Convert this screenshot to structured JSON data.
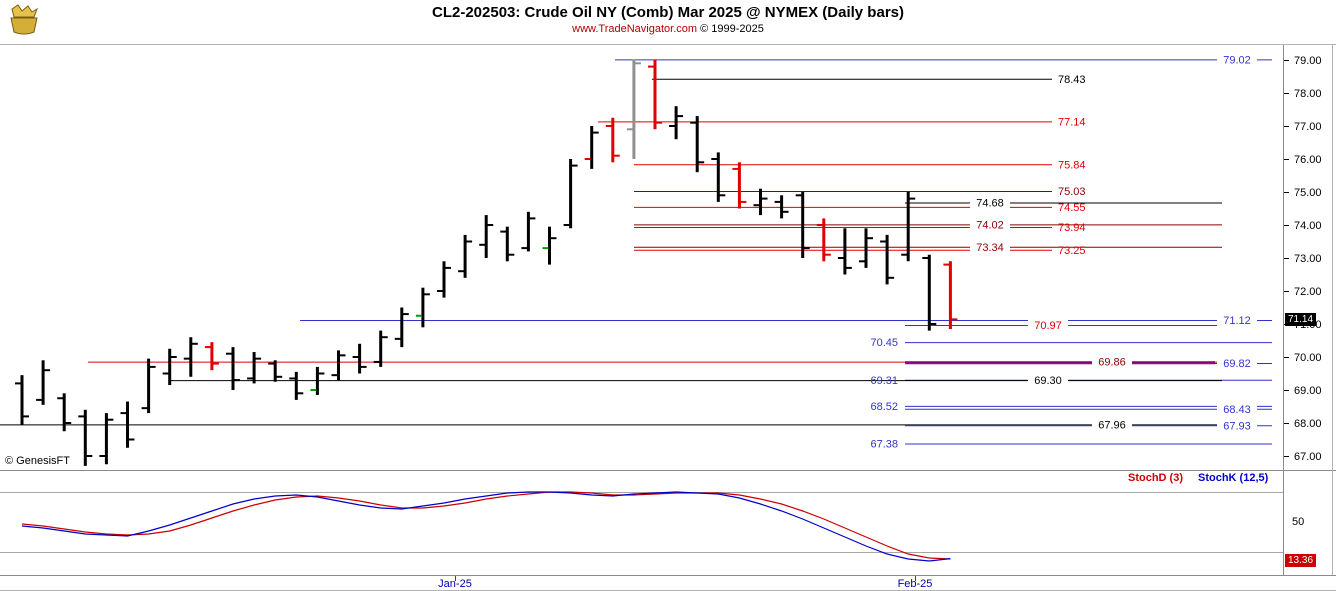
{
  "window": {
    "title_line": "CL2-202503:  Crude Oil NY (Comb) Mar 2025 @ NYMEX  (Daily bars)",
    "subtitle_url": "www.TradeNavigator.com",
    "subtitle_copyright": "© 1999-2025"
  },
  "watermark": "© GenesisFT",
  "colors": {
    "k": "#000000",
    "r": "#e00000",
    "gy": "#909090",
    "green": "#00a000"
  },
  "price_axis": {
    "current_badge": "71.14"
  },
  "stoch_panel": {
    "legend_d": "StochD (3)",
    "legend_k": "StochK (12,5)",
    "mid_label": "50",
    "current_badge": "13.36"
  },
  "chart_data": {
    "type": "ohlc-bar",
    "title": "CL2-202503: Crude Oil NY (Comb) Mar 2025 @ NYMEX (Daily bars)",
    "ylabel": "Price",
    "ylim": [
      67.0,
      79.0
    ],
    "grid": "off",
    "y_ticks": [
      "79.00",
      "78.00",
      "77.00",
      "76.00",
      "75.00",
      "74.00",
      "73.00",
      "72.00",
      "71.00",
      "70.00",
      "69.00",
      "68.00",
      "67.00"
    ],
    "x_ticks": [
      {
        "label": "Jan-25",
        "x": 455
      },
      {
        "label": "Feb-25",
        "x": 915
      }
    ],
    "bars": [
      {
        "h": 69.45,
        "l": 67.95,
        "o": 69.2,
        "c": 68.2,
        "col": "k"
      },
      {
        "h": 69.9,
        "l": 68.55,
        "o": 68.7,
        "c": 69.6,
        "col": "k"
      },
      {
        "h": 68.9,
        "l": 67.75,
        "o": 68.75,
        "c": 68.0,
        "col": "k"
      },
      {
        "h": 68.4,
        "l": 66.7,
        "o": 68.2,
        "c": 67.0,
        "col": "k"
      },
      {
        "h": 68.3,
        "l": 66.75,
        "o": 67.0,
        "c": 68.1,
        "col": "k"
      },
      {
        "h": 68.65,
        "l": 67.25,
        "o": 68.3,
        "c": 67.5,
        "col": "k"
      },
      {
        "h": 69.95,
        "l": 68.3,
        "o": 68.45,
        "c": 69.7,
        "col": "k"
      },
      {
        "h": 70.25,
        "l": 69.15,
        "o": 69.5,
        "c": 70.0,
        "col": "k"
      },
      {
        "h": 70.6,
        "l": 69.4,
        "o": 69.95,
        "c": 70.4,
        "col": "k"
      },
      {
        "h": 70.45,
        "l": 69.6,
        "o": 70.3,
        "c": 69.8,
        "col": "r"
      },
      {
        "h": 70.3,
        "l": 69.0,
        "o": 70.1,
        "c": 69.3,
        "col": "k"
      },
      {
        "h": 70.15,
        "l": 69.2,
        "o": 69.35,
        "c": 69.95,
        "col": "k"
      },
      {
        "h": 69.9,
        "l": 69.25,
        "o": 69.8,
        "c": 69.4,
        "col": "k"
      },
      {
        "h": 69.55,
        "l": 68.7,
        "o": 69.35,
        "c": 68.9,
        "col": "k"
      },
      {
        "h": 69.7,
        "l": 68.85,
        "o": 69.0,
        "c": 69.5,
        "col": "k",
        "otc": "green"
      },
      {
        "h": 70.2,
        "l": 69.3,
        "o": 69.45,
        "c": 70.05,
        "col": "k"
      },
      {
        "h": 70.4,
        "l": 69.5,
        "o": 70.0,
        "c": 69.7,
        "col": "k"
      },
      {
        "h": 70.8,
        "l": 69.7,
        "o": 69.85,
        "c": 70.6,
        "col": "k"
      },
      {
        "h": 71.5,
        "l": 70.3,
        "o": 70.55,
        "c": 71.3,
        "col": "k"
      },
      {
        "h": 72.1,
        "l": 70.9,
        "o": 71.25,
        "c": 71.9,
        "col": "k",
        "otc": "green"
      },
      {
        "h": 72.9,
        "l": 71.8,
        "o": 72.0,
        "c": 72.7,
        "col": "k"
      },
      {
        "h": 73.7,
        "l": 72.4,
        "o": 72.6,
        "c": 73.5,
        "col": "k"
      },
      {
        "h": 74.3,
        "l": 73.0,
        "o": 73.4,
        "c": 74.0,
        "col": "k"
      },
      {
        "h": 73.95,
        "l": 72.9,
        "o": 73.8,
        "c": 73.1,
        "col": "k"
      },
      {
        "h": 74.4,
        "l": 73.2,
        "o": 73.3,
        "c": 74.2,
        "col": "k"
      },
      {
        "h": 73.95,
        "l": 72.8,
        "o": 73.3,
        "c": 73.6,
        "col": "k",
        "otc": "green"
      },
      {
        "h": 76.0,
        "l": 73.9,
        "o": 74.0,
        "c": 75.8,
        "col": "k"
      },
      {
        "h": 77.0,
        "l": 75.7,
        "o": 76.0,
        "c": 76.8,
        "col": "k",
        "otc": "r"
      },
      {
        "h": 77.25,
        "l": 75.9,
        "o": 77.0,
        "c": 76.1,
        "col": "r"
      },
      {
        "h": 79.02,
        "l": 76.0,
        "o": 76.9,
        "c": 78.9,
        "col": "gy"
      },
      {
        "h": 79.0,
        "l": 76.9,
        "o": 78.8,
        "c": 77.1,
        "col": "r"
      },
      {
        "h": 77.6,
        "l": 76.6,
        "o": 77.0,
        "c": 77.3,
        "col": "k"
      },
      {
        "h": 77.3,
        "l": 75.6,
        "o": 77.1,
        "c": 75.9,
        "col": "k"
      },
      {
        "h": 76.2,
        "l": 74.7,
        "o": 76.0,
        "c": 74.9,
        "col": "k"
      },
      {
        "h": 75.9,
        "l": 74.5,
        "o": 75.7,
        "c": 74.7,
        "col": "r"
      },
      {
        "h": 75.1,
        "l": 74.3,
        "o": 74.6,
        "c": 74.8,
        "col": "k"
      },
      {
        "h": 74.9,
        "l": 74.2,
        "o": 74.7,
        "c": 74.4,
        "col": "k"
      },
      {
        "h": 75.0,
        "l": 73.0,
        "o": 74.9,
        "c": 73.3,
        "col": "k"
      },
      {
        "h": 74.2,
        "l": 72.9,
        "o": 74.0,
        "c": 73.1,
        "col": "r"
      },
      {
        "h": 73.9,
        "l": 72.5,
        "o": 73.0,
        "c": 72.7,
        "col": "k"
      },
      {
        "h": 73.9,
        "l": 72.7,
        "o": 72.9,
        "c": 73.6,
        "col": "k"
      },
      {
        "h": 73.7,
        "l": 72.2,
        "o": 73.5,
        "c": 72.4,
        "col": "k"
      },
      {
        "h": 75.0,
        "l": 72.9,
        "o": 73.1,
        "c": 74.8,
        "col": "k"
      },
      {
        "h": 73.1,
        "l": 70.8,
        "o": 73.0,
        "c": 71.0,
        "col": "k"
      },
      {
        "h": 72.9,
        "l": 70.85,
        "o": 72.8,
        "c": 71.14,
        "col": "r"
      }
    ],
    "levels": [
      {
        "price": 79.02,
        "x1": 615,
        "x2": 1272,
        "color": "#3333cc",
        "label": "79.02",
        "label_x": 1237,
        "anchor": "middle",
        "bg": true
      },
      {
        "price": 78.43,
        "x1": 652,
        "x2": 1052,
        "color": "#000000",
        "label": "78.43",
        "label_x": 1058,
        "anchor": "start"
      },
      {
        "price": 77.14,
        "x1": 598,
        "x2": 1052,
        "color": "#e00000",
        "label": "77.14",
        "label_x": 1058,
        "anchor": "start"
      },
      {
        "price": 75.84,
        "x1": 634,
        "x2": 1052,
        "color": "#e00000",
        "label": "75.84",
        "label_x": 1058,
        "anchor": "start"
      },
      {
        "price": 75.03,
        "x1": 634,
        "x2": 1052,
        "color": "#8b0000",
        "label": "75.03",
        "label_x": 1058,
        "anchor": "start"
      },
      {
        "price": 74.68,
        "x1": 905,
        "x2": 1222,
        "color": "#000000",
        "label": "74.68",
        "label_x": 990,
        "anchor": "middle",
        "bg": true
      },
      {
        "price": 74.55,
        "x1": 634,
        "x2": 1052,
        "color": "#e00000",
        "label": "74.55",
        "label_x": 1058,
        "anchor": "start"
      },
      {
        "price": 74.02,
        "x1": 634,
        "x2": 1222,
        "color": "#8b0000",
        "label": "74.02",
        "label_x": 990,
        "anchor": "middle",
        "bg": true
      },
      {
        "price": 73.94,
        "x1": 634,
        "x2": 1052,
        "color": "#e00000",
        "label": "73.94",
        "label_x": 1058,
        "anchor": "start"
      },
      {
        "price": 73.34,
        "x1": 634,
        "x2": 1222,
        "color": "#8b0000",
        "label": "73.34",
        "label_x": 990,
        "anchor": "middle",
        "bg": true
      },
      {
        "price": 73.25,
        "x1": 634,
        "x2": 1052,
        "color": "#e00000",
        "label": "73.25",
        "label_x": 1058,
        "anchor": "start"
      },
      {
        "price": 71.12,
        "x1": 300,
        "x2": 1272,
        "color": "#3333cc",
        "label": "71.12",
        "label_x": 1237,
        "anchor": "middle",
        "bg": true
      },
      {
        "price": 70.97,
        "x1": 905,
        "x2": 1222,
        "color": "#e00000",
        "label": "70.97",
        "label_x": 1048,
        "anchor": "middle",
        "bg": true
      },
      {
        "price": 70.45,
        "x1": 905,
        "x2": 1272,
        "color": "#3333cc",
        "label": "70.45",
        "label_x": 898,
        "anchor": "end"
      },
      {
        "price": 69.86,
        "x1": 88,
        "x2": 1222,
        "color": "#e00000",
        "label": "69.86",
        "label_x": 1112,
        "anchor": "middle",
        "bg": true,
        "label_color": "#8b0000"
      },
      {
        "price": 69.84,
        "x1": 905,
        "x2": 1215,
        "color": "#800080",
        "width": 3
      },
      {
        "price": 69.82,
        "x1": 905,
        "x2": 1272,
        "color": "#3333cc",
        "label": "69.82",
        "label_x": 1237,
        "anchor": "middle",
        "bg": true
      },
      {
        "price": 69.31,
        "x1": 905,
        "x2": 1272,
        "color": "#3333cc",
        "label": "69.31",
        "label_x": 898,
        "anchor": "end"
      },
      {
        "price": 69.3,
        "x1": 170,
        "x2": 1222,
        "color": "#000000",
        "label": "69.30",
        "label_x": 1048,
        "anchor": "middle",
        "bg": true
      },
      {
        "price": 68.52,
        "x1": 905,
        "x2": 1272,
        "color": "#3333cc",
        "label": "68.52",
        "label_x": 898,
        "anchor": "end"
      },
      {
        "price": 68.43,
        "x1": 905,
        "x2": 1272,
        "color": "#3333cc",
        "label": "68.43",
        "label_x": 1237,
        "anchor": "middle",
        "bg": true
      },
      {
        "price": 67.96,
        "x1": 0,
        "x2": 1222,
        "color": "#000000",
        "label": "67.96",
        "label_x": 1112,
        "anchor": "middle",
        "bg": true
      },
      {
        "price": 67.93,
        "x1": 905,
        "x2": 1272,
        "color": "#3333cc",
        "label": "67.93",
        "label_x": 1237,
        "anchor": "middle",
        "bg": true
      },
      {
        "price": 67.38,
        "x1": 905,
        "x2": 1272,
        "color": "#3333cc",
        "label": "67.38",
        "label_x": 898,
        "anchor": "end"
      }
    ],
    "stochastic": {
      "name_k": "StochK (12,5)",
      "name_d": "StochD (3)",
      "range": [
        0,
        100
      ],
      "gridlines": [
        80,
        20
      ],
      "mid_label": "50",
      "last_k": 13.36,
      "colors": {
        "k": "#0000cc",
        "d": "#cc0000"
      },
      "k": [
        46,
        44,
        41,
        38,
        37,
        36,
        41,
        47,
        54,
        61,
        68,
        73,
        76,
        77,
        75,
        71,
        67,
        64,
        63,
        66,
        69,
        73,
        76,
        79,
        80,
        80,
        79,
        77,
        76,
        78,
        79,
        80,
        79,
        78,
        74,
        68,
        61,
        53,
        44,
        35,
        26,
        18,
        13,
        11,
        13.36
      ],
      "d": [
        48,
        46,
        43,
        40,
        38,
        37,
        38,
        41,
        47,
        54,
        61,
        67,
        72,
        75,
        76,
        74,
        71,
        67,
        64,
        64,
        66,
        69,
        73,
        76,
        78,
        80,
        80,
        79,
        77,
        77,
        78,
        79,
        79,
        79,
        77,
        73,
        68,
        61,
        53,
        44,
        35,
        26,
        18,
        14,
        13
      ]
    }
  }
}
